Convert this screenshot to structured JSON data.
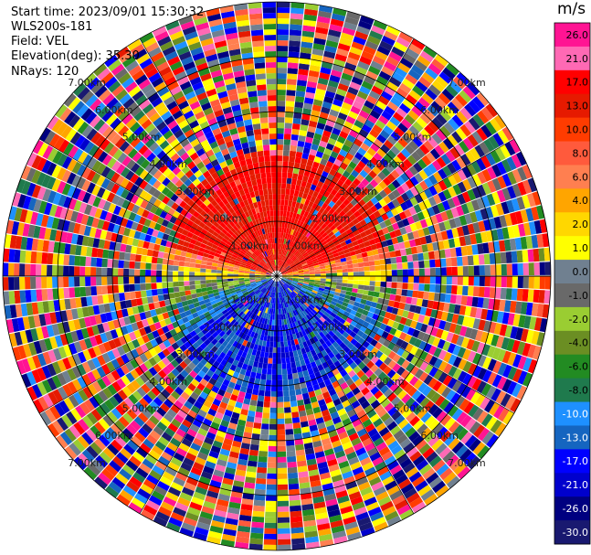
{
  "header": {
    "start_time": "Start time: 2023/09/01 15:30:32",
    "instrument": "WLS200s-181",
    "field": "Field: VEL",
    "elevation": "Elevation(deg): 35.30",
    "nrays": "NRays: 120"
  },
  "colorbar": {
    "unit": "m/s",
    "ticks": [
      "26.0",
      "21.0",
      "17.0",
      "13.0",
      "10.0",
      "8.0",
      "6.0",
      "4.0",
      "2.0",
      "1.0",
      "0.0",
      "-1.0",
      "-2.0",
      "-4.0",
      "-6.0",
      "-8.0",
      "-10.0",
      "-13.0",
      "-17.0",
      "-21.0",
      "-26.0",
      "-30.0"
    ],
    "colors": [
      "#ff1493",
      "#ff69b4",
      "#ff0000",
      "#e61a00",
      "#ff3c00",
      "#ff5a3c",
      "#ff7f50",
      "#ffa500",
      "#ffd700",
      "#ffff00",
      "#708090",
      "#696969",
      "#9acd32",
      "#6b8e23",
      "#228b22",
      "#1f7a4d",
      "#1e90ff",
      "#1565c0",
      "#0000ff",
      "#0000cd",
      "#000080",
      "#191970"
    ]
  },
  "chart_data": {
    "type": "ppi",
    "field": "VEL",
    "units": "m/s",
    "nrays": 120,
    "elevation_deg": 35.3,
    "range_ring_labels_km": [
      "1.00km",
      "2.00km",
      "3.00km",
      "4.00km",
      "5.00km",
      "6.00km",
      "7.00km"
    ],
    "description_of_field": {
      "north_sector_0_1_8km": "positive 17 to 21 m/s (red)",
      "east_west_band_near_center": "near 0 to 4 m/s (gray/yellow)",
      "south_sector_0_1_8km": "negative -13 to -21 m/s (blue)",
      "beyond_2_5km": "noise (random values across full scale)"
    }
  }
}
